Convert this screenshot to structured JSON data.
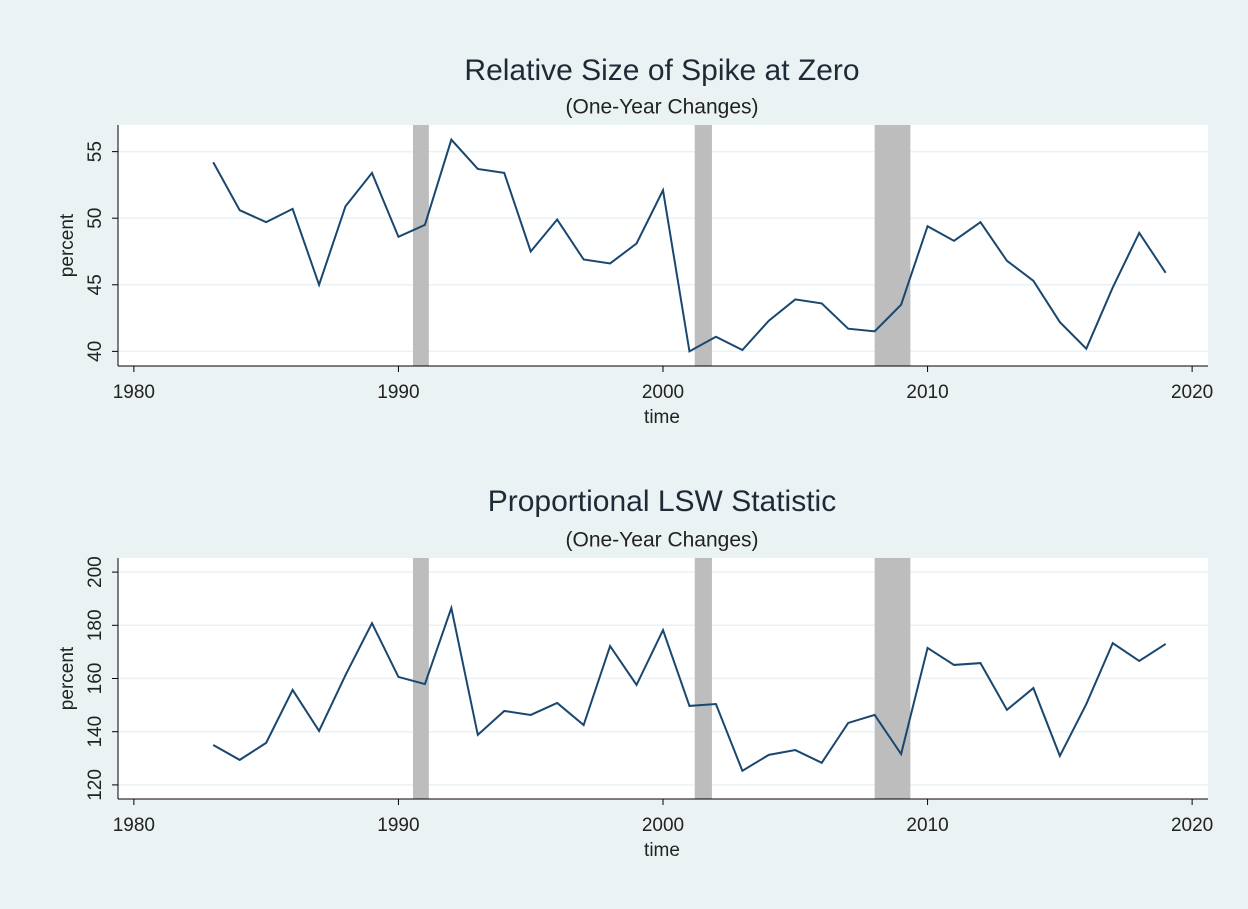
{
  "chart_data": [
    {
      "type": "line",
      "title": "Relative Size of Spike at Zero",
      "subtitle": "(One-Year Changes)",
      "xlabel": "time",
      "ylabel": "percent",
      "x": [
        1983,
        1984,
        1985,
        1986,
        1987,
        1988,
        1989,
        1990,
        1991,
        1992,
        1993,
        1994,
        1995,
        1996,
        1997,
        1998,
        1999,
        2000,
        2001,
        2002,
        2003,
        2004,
        2005,
        2006,
        2007,
        2008,
        2009,
        2010,
        2011,
        2012,
        2013,
        2014,
        2015,
        2016,
        2017,
        2018,
        2019
      ],
      "values": [
        54.2,
        50.6,
        49.7,
        50.7,
        45.0,
        50.9,
        53.4,
        48.6,
        49.5,
        55.9,
        53.7,
        53.4,
        47.5,
        49.9,
        46.9,
        46.6,
        48.1,
        52.1,
        40.0,
        41.1,
        40.1,
        42.3,
        43.9,
        43.6,
        41.7,
        41.5,
        43.5,
        49.4,
        48.3,
        49.7,
        46.8,
        45.3,
        42.2,
        40.2,
        44.8,
        48.9,
        45.9
      ],
      "color": "#1a476f",
      "xlim": [
        1979.4,
        2020.6
      ],
      "xticks": [
        1980,
        1990,
        2000,
        2010,
        2020
      ],
      "ylim": [
        38.9,
        57
      ],
      "yticks": [
        40,
        45,
        50,
        55
      ],
      "grid": true,
      "shaded_periods": [
        [
          1990.55,
          1991.15
        ],
        [
          2001.2,
          2001.85
        ],
        [
          2008.0,
          2009.35
        ]
      ],
      "shade_color": "#bdbdbd"
    },
    {
      "type": "line",
      "title": "Proportional LSW Statistic",
      "subtitle": "(One-Year Changes)",
      "xlabel": "time",
      "ylabel": "percent",
      "x": [
        1983,
        1984,
        1985,
        1986,
        1987,
        1988,
        1989,
        1990,
        1991,
        1992,
        1993,
        1994,
        1995,
        1996,
        1997,
        1998,
        1999,
        2000,
        2001,
        2002,
        2003,
        2004,
        2005,
        2006,
        2007,
        2008,
        2009,
        2010,
        2011,
        2012,
        2013,
        2014,
        2015,
        2016,
        2017,
        2018,
        2019
      ],
      "values": [
        135,
        129.4,
        135.8,
        155.7,
        140.3,
        161.3,
        180.8,
        160.6,
        157.9,
        186.5,
        138.8,
        147.8,
        146.3,
        150.8,
        142.5,
        172.2,
        157.6,
        178.2,
        149.7,
        150.4,
        125.3,
        131.3,
        133.1,
        128.3,
        143.3,
        146.3,
        131.6,
        171.5,
        165.1,
        165.8,
        148.2,
        156.4,
        130.9,
        150.4,
        173.3,
        166.6,
        173
      ],
      "color": "#1a476f",
      "xlim": [
        1979.4,
        2020.6
      ],
      "xticks": [
        1980,
        1990,
        2000,
        2010,
        2020
      ],
      "ylim": [
        114.7,
        205.3
      ],
      "yticks": [
        120,
        140,
        160,
        180,
        200
      ],
      "grid": true,
      "shaded_periods": [
        [
          1990.55,
          1991.15
        ],
        [
          2001.2,
          2001.85
        ],
        [
          2008.0,
          2009.35
        ]
      ],
      "shade_color": "#bdbdbd"
    }
  ]
}
